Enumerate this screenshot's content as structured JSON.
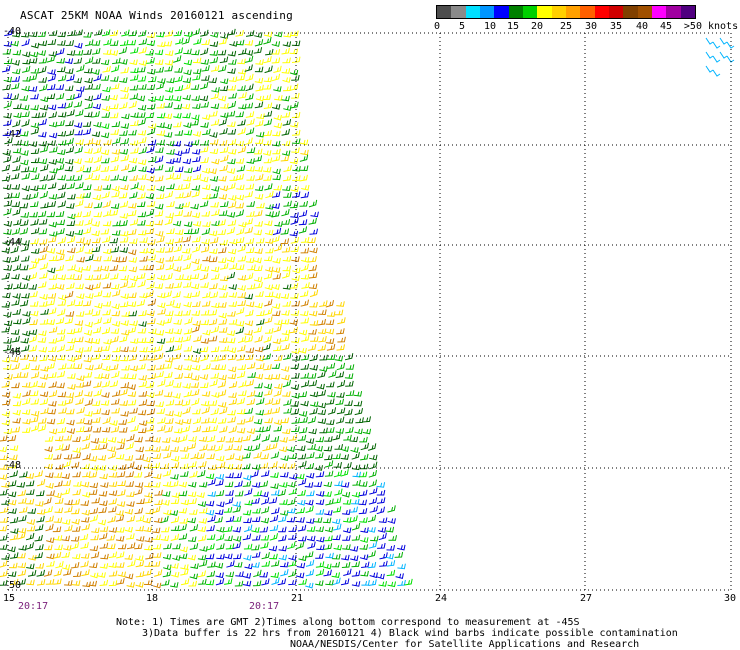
{
  "header": {
    "title": "ASCAT 25KM NOAA Winds 20160121 ascending"
  },
  "colorbar": {
    "labels": [
      "0",
      "5",
      "10",
      "15",
      "20",
      "25",
      "30",
      "35",
      "40",
      "45",
      ">50 knots"
    ],
    "colors": [
      "#4d4d4d",
      "#8a8a8a",
      "#00e0ff",
      "#0096ff",
      "#0000ff",
      "#008000",
      "#00d000",
      "#ffff00",
      "#ffd000",
      "#ffa000",
      "#ff6000",
      "#ff0000",
      "#d00000",
      "#804000",
      "#a05000",
      "#ff00ff",
      "#a000a0",
      "#500080"
    ]
  },
  "axes": {
    "lat_labels": [
      "-40",
      "-42",
      "-44",
      "-46",
      "-48",
      "-50"
    ],
    "lon_labels": [
      "15",
      "18",
      "21",
      "24",
      "27",
      "30"
    ]
  },
  "times": [
    "20:17",
    "20:17"
  ],
  "notes": {
    "line1": "Note: 1) Times are GMT 2)Times along bottom correspond to measurement at -45S",
    "line2": "3)Data buffer is 22 hrs from 20160121 4) Black wind barbs indicate possible contamination",
    "line3": "NOAA/NESDIS/Center for Satellite Applications and Research"
  },
  "wind_colors": {
    "dark_green": "#006400",
    "green": "#00b000",
    "light_green": "#00e000",
    "blue": "#0000dd",
    "light_blue": "#00b4ff",
    "yellow": "#ffff00",
    "gold": "#ffd700",
    "orange": "#d08000"
  }
}
